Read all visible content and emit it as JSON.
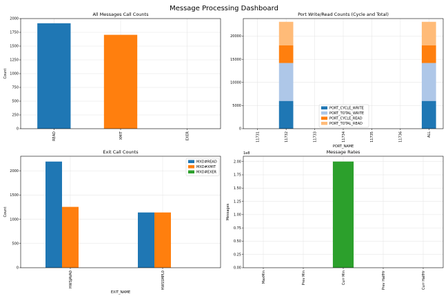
{
  "page": {
    "title": "Message Processing Dashboard"
  },
  "chart_data": [
    {
      "type": "bar",
      "title": "All Messages Call Counts",
      "xlabel": "",
      "ylabel": "Count",
      "categories": [
        "READ",
        "XMIT",
        "EXER"
      ],
      "values": [
        1915,
        1705,
        0
      ],
      "colors": [
        "#1f77b4",
        "#ff7f0e",
        "#2ca02c"
      ],
      "ylim": [
        0,
        2000
      ],
      "yticks": [
        0,
        250,
        500,
        750,
        1000,
        1250,
        1500,
        1750,
        2000
      ],
      "grid": true
    },
    {
      "type": "bar",
      "stacked": true,
      "title": "Port Write/Read Counts (Cycle and Total)",
      "xlabel": "PORT_NAME",
      "ylabel": "",
      "categories": [
        "11731",
        "11732",
        "11733",
        "11734",
        "11735",
        "11736",
        "ALL"
      ],
      "series": [
        {
          "name": "PORT_CYCLE_WRITE",
          "color": "#1f77b4",
          "values": [
            0,
            6000,
            0,
            0,
            0,
            0,
            6000
          ]
        },
        {
          "name": "PORT_TOTAL_WRITE",
          "color": "#aec7e8",
          "values": [
            0,
            8200,
            0,
            0,
            0,
            0,
            8200
          ]
        },
        {
          "name": "PORT_CYCLE_READ",
          "color": "#ff7f0e",
          "values": [
            0,
            3800,
            0,
            0,
            0,
            0,
            3800
          ]
        },
        {
          "name": "PORT_TOTAL_READ",
          "color": "#ffbb78",
          "values": [
            0,
            5100,
            0,
            0,
            0,
            0,
            5100
          ]
        }
      ],
      "ylim": [
        0,
        23800
      ],
      "yticks": [
        0,
        5000,
        10000,
        15000,
        20000
      ],
      "legend": "bottom-center",
      "grid": true
    },
    {
      "type": "bar",
      "title": "Exit Call Counts",
      "xlabel": "EXIT_NAME",
      "ylabel": "Count",
      "categories": [
        "HWSJAVA0",
        "HWSSMPL0"
      ],
      "series": [
        {
          "name": "MXD#READ",
          "color": "#1f77b4",
          "values": [
            2190,
            1140
          ]
        },
        {
          "name": "MXD#XMIT",
          "color": "#ff7f0e",
          "values": [
            1255,
            1140
          ]
        },
        {
          "name": "MXD#EXER",
          "color": "#2ca02c",
          "values": [
            0,
            0
          ]
        }
      ],
      "ylim": [
        0,
        2300
      ],
      "yticks": [
        0,
        500,
        1000,
        1500,
        2000
      ],
      "legend": "top-right",
      "grid": true
    },
    {
      "type": "bar",
      "title": "Message Rates",
      "xlabel": "",
      "ylabel": "Messages",
      "scale_label": "1e8",
      "categories": [
        "MaxMin",
        "Prev Min",
        "Curr Min",
        "Prev HalfHr",
        "Curr HalfHr"
      ],
      "values": [
        0,
        0,
        200000000,
        0,
        0
      ],
      "color": "#2ca02c",
      "ylim": [
        0,
        210000000
      ],
      "yticks": [
        0,
        25000000,
        50000000,
        75000000,
        100000000,
        125000000,
        150000000,
        175000000,
        200000000
      ],
      "ytick_labels": [
        "0.00",
        "0.25",
        "0.50",
        "0.75",
        "1.00",
        "1.25",
        "1.50",
        "1.75",
        "2.00"
      ],
      "grid": true
    }
  ]
}
